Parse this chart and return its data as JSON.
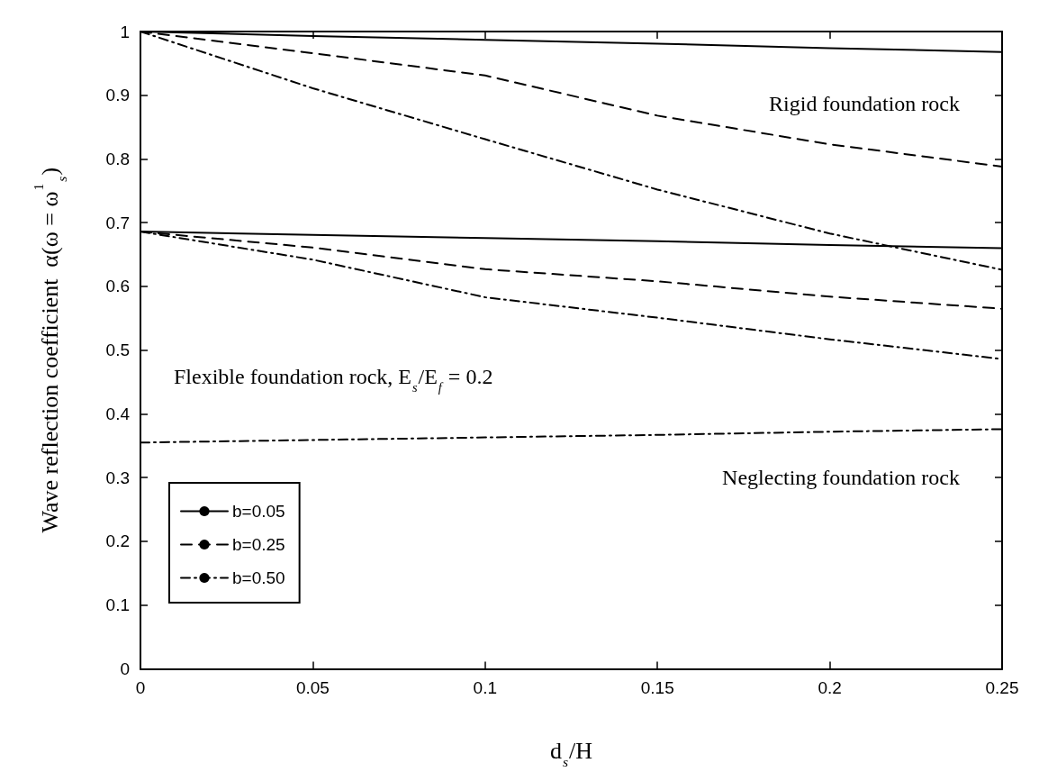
{
  "chart_data": {
    "type": "line",
    "xlabel": "d$_{s}$/H",
    "ylabel": "Wave reflection coefficient  α(ω = ω$^{1}$$_{s}$)",
    "x": [
      0,
      0.05,
      0.1,
      0.15,
      0.2,
      0.25
    ],
    "series": [
      {
        "name": "b=0.05",
        "color": "#000000",
        "line_style": "solid",
        "values": [
          1,
          0.993,
          0.987,
          0.981,
          0.974,
          0.968
        ]
      },
      {
        "name": "b=0.25",
        "color": "#000000",
        "line_style": "dashed",
        "values": [
          1,
          0.966,
          0.931,
          0.868,
          0.823,
          0.788
        ]
      },
      {
        "name": "b=0.50",
        "color": "#000000",
        "line_style": "dotted",
        "values": [
          1,
          0.911,
          0.831,
          0.752,
          0.683,
          0.626
        ]
      },
      {
        "color": "#000000",
        "line_style": "solid",
        "values": [
          0.686,
          0.681,
          0.676,
          0.671,
          0.665,
          0.66
        ]
      },
      {
        "color": "#000000",
        "line_style": "dashed",
        "values": [
          0.686,
          0.661,
          0.627,
          0.608,
          0.584,
          0.565
        ]
      },
      {
        "color": "#000000",
        "line_style": "dotted",
        "values": [
          0.686,
          0.642,
          0.583,
          0.551,
          0.517,
          0.486
        ]
      },
      {
        "color": "#000000",
        "line_style": "dotted",
        "values": [
          0.355,
          0.359,
          0.363,
          0.367,
          0.372,
          0.376
        ]
      }
    ],
    "xlim": [
      0,
      0.25
    ],
    "xticks": [
      0,
      0.05,
      0.1,
      0.15,
      0.2,
      0.25
    ],
    "ylim": [
      0,
      1
    ],
    "yticks": [
      0,
      0.1,
      0.2,
      0.3,
      0.4,
      0.5,
      0.6,
      0.7,
      0.8,
      0.9,
      1
    ],
    "grid": false,
    "legend": "bottom left",
    "marker": "none",
    "annotations": [
      "Rigid foundation rock",
      "Flexible foundation rock, E$_{s}$/E$_{f}$ = 0.2",
      "Neglecting foundation rock"
    ]
  }
}
